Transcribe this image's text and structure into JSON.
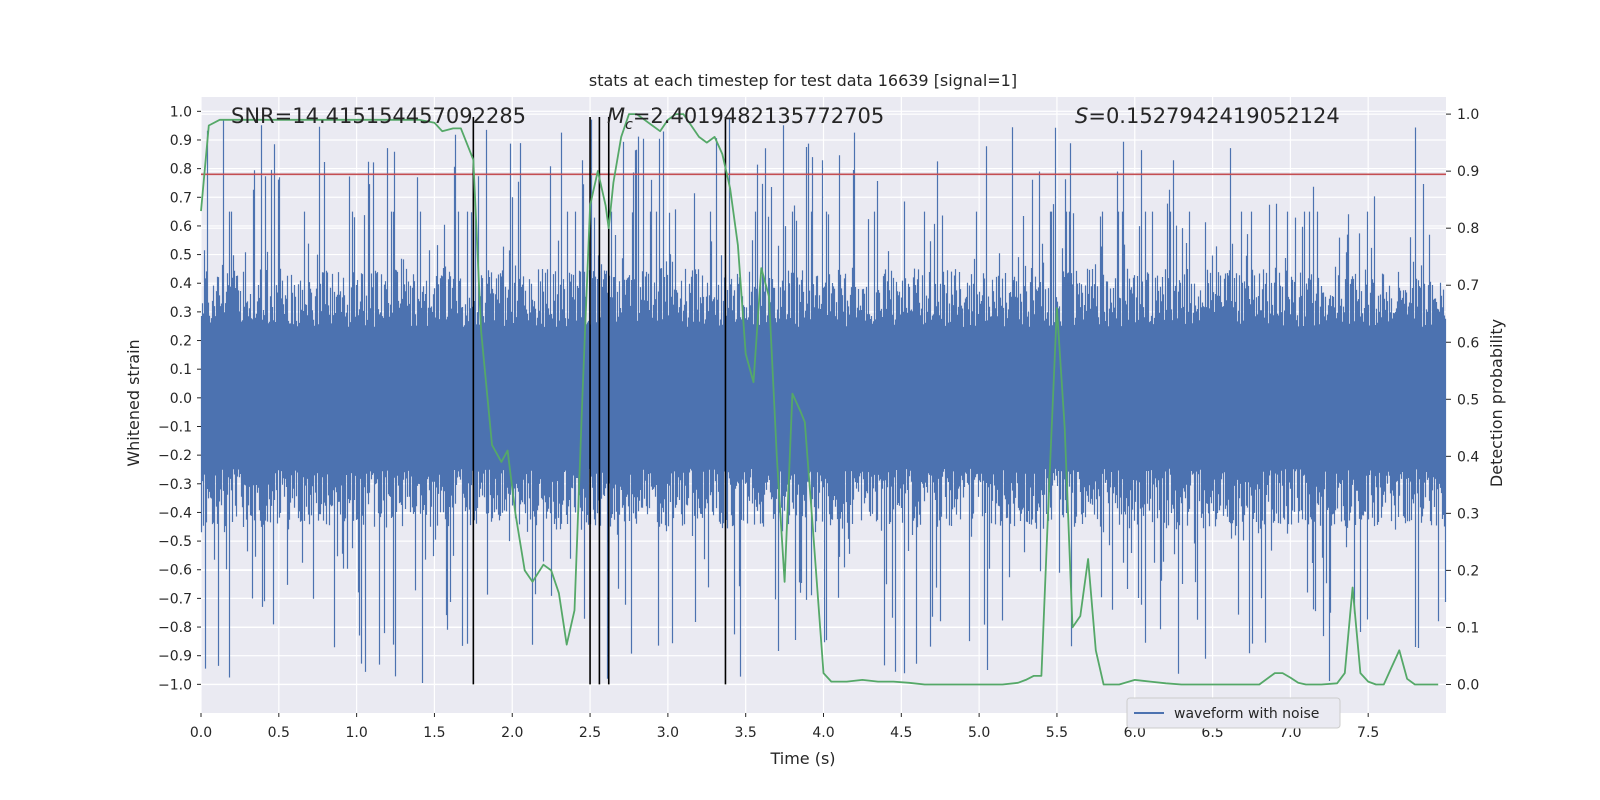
{
  "chart_data": {
    "type": "line",
    "title": "stats at each timestep for test data 16639 [signal=1]",
    "xlabel": "Time (s)",
    "ylabel_left": "Whitened strain",
    "ylabel_right": "Detection probability",
    "xlim": [
      0.0,
      8.0
    ],
    "ylim_left": [
      -1.1,
      1.05
    ],
    "ylim_right": [
      -0.05,
      1.03
    ],
    "x_ticks": [
      0.0,
      0.5,
      1.0,
      1.5,
      2.0,
      2.5,
      3.0,
      3.5,
      4.0,
      4.5,
      5.0,
      5.5,
      6.0,
      6.5,
      7.0,
      7.5
    ],
    "x_tick_labels": [
      "0.0",
      "0.5",
      "1.0",
      "1.5",
      "2.0",
      "2.5",
      "3.0",
      "3.5",
      "4.0",
      "4.5",
      "5.0",
      "5.5",
      "6.0",
      "6.5",
      "7.0",
      "7.5"
    ],
    "y_left_ticks": [
      1.0,
      0.9,
      0.8,
      0.7,
      0.6,
      0.5,
      0.4,
      0.3,
      0.2,
      0.1,
      0.0,
      -0.1,
      -0.2,
      -0.3,
      -0.4,
      -0.5,
      -0.6,
      -0.7,
      -0.8,
      -0.9,
      -1.0
    ],
    "y_left_tick_labels": [
      "1.0",
      "0.9",
      "0.8",
      "0.7",
      "0.6",
      "0.5",
      "0.4",
      "0.3",
      "0.2",
      "0.1",
      "0.0",
      "−0.1",
      "−0.2",
      "−0.3",
      "−0.4",
      "−0.5",
      "−0.6",
      "−0.7",
      "−0.8",
      "−0.9",
      "−1.0"
    ],
    "y_right_ticks": [
      1.0,
      0.9,
      0.8,
      0.7,
      0.6,
      0.5,
      0.4,
      0.3,
      0.2,
      0.1,
      0.0
    ],
    "y_right_tick_labels": [
      "1.0",
      "0.9",
      "0.8",
      "0.7",
      "0.6",
      "0.5",
      "0.4",
      "0.3",
      "0.2",
      "0.1",
      "0.0"
    ],
    "annotations": {
      "snr": "SNR=14.415154457092285",
      "mc_symbol": "M",
      "mc_sub": "c",
      "mc_value": "=2.4019482135772705",
      "s_symbol": "S",
      "s_value": "=0.1527942419052124"
    },
    "threshold_line": {
      "value": 0.78,
      "color": "#c44e52"
    },
    "vertical_markers": [
      1.75,
      2.5,
      2.56,
      2.62,
      3.37
    ],
    "vertical_marker_range": [
      -1.0,
      0.98
    ],
    "legend": {
      "label": "waveform with noise",
      "placement": "lower-right"
    },
    "series": [
      {
        "name": "waveform with noise",
        "kind": "noisy-strain",
        "color": "#4c72b0",
        "envelope_upper": 0.45,
        "envelope_lower": -0.45,
        "spike_max": 0.98,
        "spike_min": -1.0
      },
      {
        "name": "detection probability",
        "axis": "right",
        "color": "#55a868",
        "x": [
          0.0,
          0.05,
          0.12,
          0.2,
          0.4,
          0.6,
          0.8,
          1.0,
          1.2,
          1.4,
          1.5,
          1.55,
          1.62,
          1.67,
          1.75,
          1.8,
          1.87,
          1.93,
          1.97,
          2.02,
          2.08,
          2.13,
          2.2,
          2.25,
          2.3,
          2.35,
          2.4,
          2.45,
          2.5,
          2.55,
          2.6,
          2.62,
          2.65,
          2.7,
          2.75,
          2.8,
          2.85,
          2.9,
          2.95,
          3.0,
          3.05,
          3.1,
          3.15,
          3.2,
          3.25,
          3.3,
          3.35,
          3.4,
          3.45,
          3.5,
          3.55,
          3.6,
          3.65,
          3.7,
          3.75,
          3.8,
          3.85,
          3.88,
          3.93,
          4.0,
          4.05,
          4.15,
          4.25,
          4.35,
          4.45,
          4.55,
          4.65,
          4.75,
          4.85,
          4.95,
          5.05,
          5.15,
          5.25,
          5.3,
          5.35,
          5.4,
          5.45,
          5.5,
          5.55,
          5.6,
          5.65,
          5.7,
          5.75,
          5.8,
          5.85,
          5.9,
          6.0,
          6.1,
          6.2,
          6.3,
          6.4,
          6.5,
          6.6,
          6.7,
          6.8,
          6.9,
          6.95,
          7.0,
          7.05,
          7.1,
          7.2,
          7.3,
          7.35,
          7.4,
          7.45,
          7.5,
          7.55,
          7.6,
          7.65,
          7.7,
          7.75,
          7.8,
          7.9,
          7.95
        ],
        "values": [
          0.83,
          0.98,
          0.99,
          0.99,
          0.99,
          0.99,
          0.99,
          0.99,
          0.99,
          0.99,
          0.985,
          0.97,
          0.975,
          0.975,
          0.92,
          0.62,
          0.42,
          0.39,
          0.41,
          0.3,
          0.2,
          0.18,
          0.21,
          0.2,
          0.16,
          0.07,
          0.13,
          0.5,
          0.84,
          0.9,
          0.84,
          0.8,
          0.88,
          0.96,
          1.0,
          1.0,
          0.99,
          0.98,
          0.97,
          0.99,
          1.0,
          1.0,
          0.98,
          0.96,
          0.95,
          0.96,
          0.93,
          0.87,
          0.77,
          0.58,
          0.53,
          0.73,
          0.68,
          0.4,
          0.18,
          0.51,
          0.48,
          0.46,
          0.28,
          0.02,
          0.005,
          0.005,
          0.008,
          0.005,
          0.005,
          0.003,
          0.0,
          0.0,
          0.0,
          0.0,
          0.0,
          0.0,
          0.003,
          0.008,
          0.015,
          0.015,
          0.35,
          0.66,
          0.45,
          0.1,
          0.12,
          0.22,
          0.06,
          0.0,
          0.0,
          0.0,
          0.008,
          0.005,
          0.002,
          0.0,
          0.0,
          0.0,
          0.0,
          0.0,
          0.0,
          0.02,
          0.02,
          0.012,
          0.003,
          0.0,
          0.0,
          0.002,
          0.02,
          0.17,
          0.02,
          0.005,
          0.0,
          0.0,
          0.03,
          0.06,
          0.01,
          0.0,
          0.0,
          0.0
        ]
      }
    ]
  }
}
